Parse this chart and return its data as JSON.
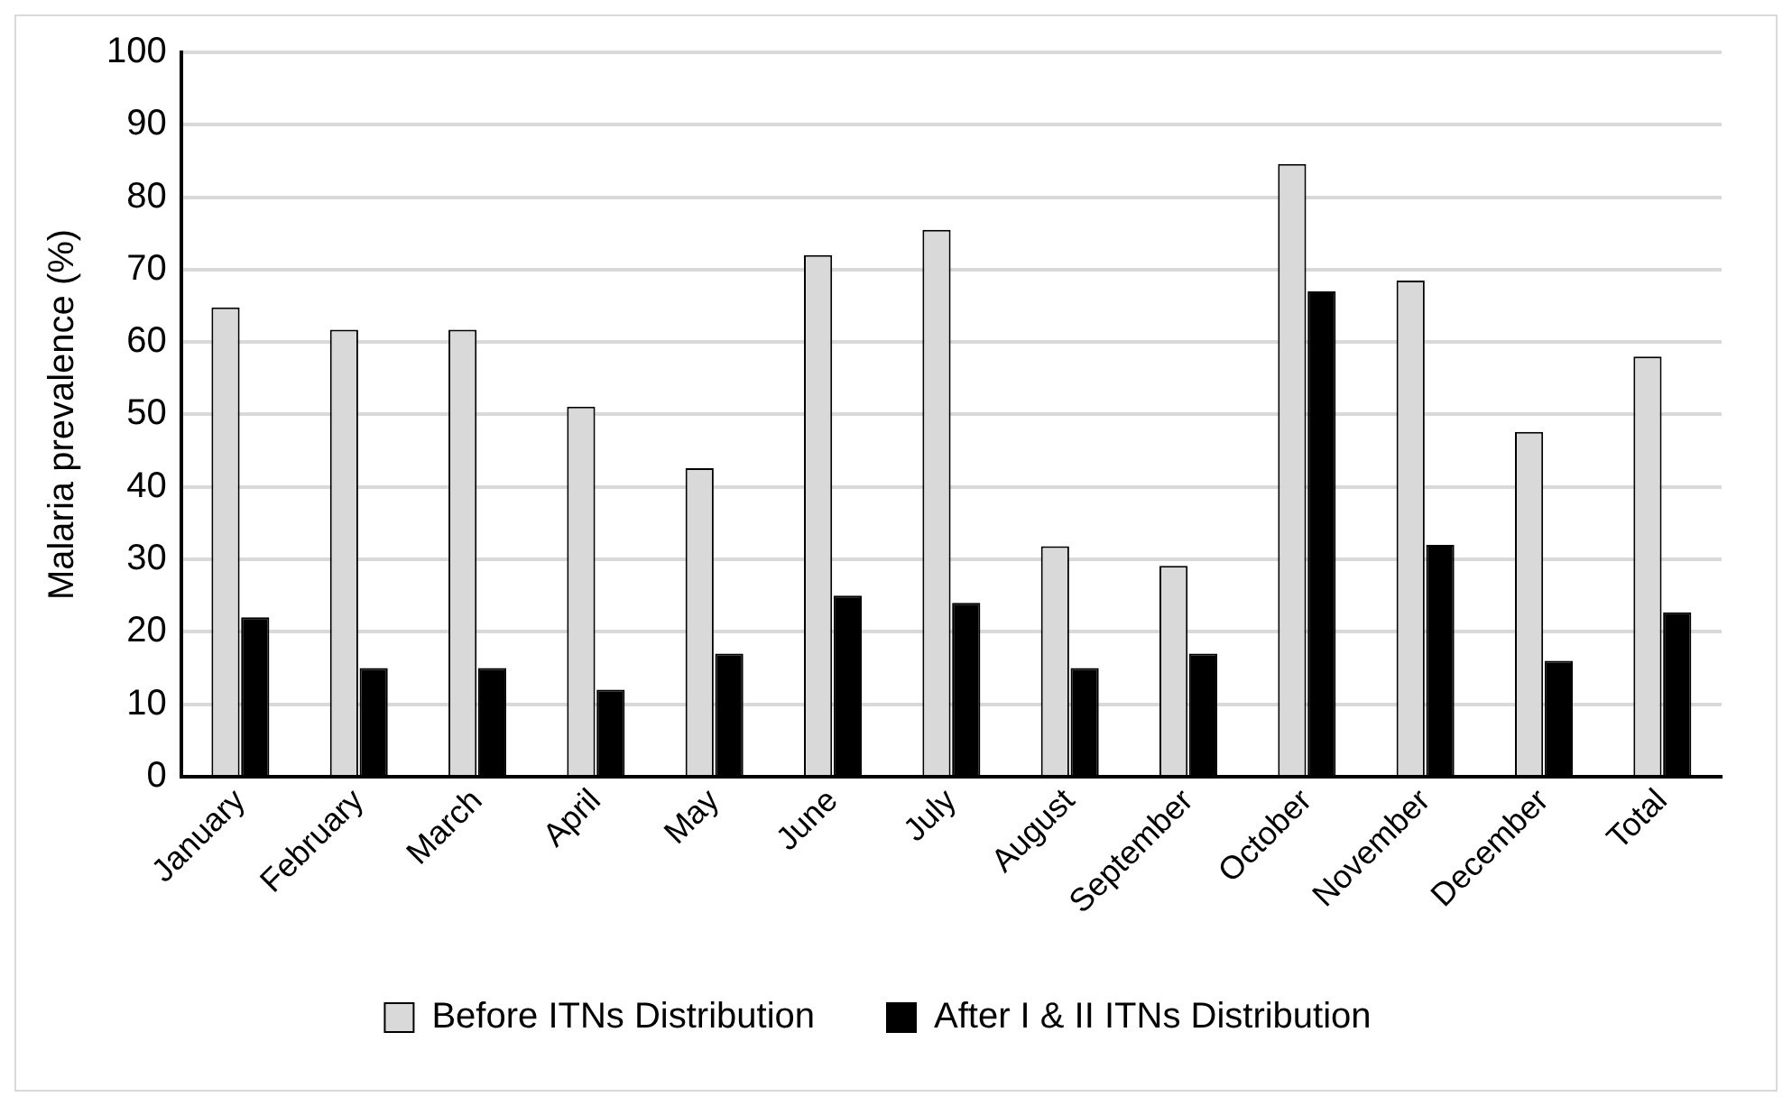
{
  "chart_data": {
    "type": "bar",
    "ylabel": "Malaria prevalence (%)",
    "categories": [
      "January",
      "February",
      "March",
      "April",
      "May",
      "June",
      "July",
      "August",
      "September",
      "October",
      "November",
      "December",
      "Total"
    ],
    "series": [
      {
        "name": "Before ITNs Distribution",
        "color": "#d9d9d9",
        "values": [
          64.8,
          61.7,
          61.7,
          51.1,
          42.6,
          72.0,
          75.5,
          31.8,
          29.1,
          84.6,
          68.5,
          47.6,
          58.0
        ]
      },
      {
        "name": "After I & II ITNs Distribution",
        "color": "#000000",
        "values": [
          22,
          15,
          15,
          12,
          17,
          25,
          24,
          15,
          17,
          67,
          32,
          16,
          22.7
        ]
      }
    ],
    "ylim": [
      0,
      100
    ],
    "yticks": [
      0,
      10,
      20,
      30,
      40,
      50,
      60,
      70,
      80,
      90,
      100
    ],
    "grid": "y",
    "legend": "bottom"
  }
}
